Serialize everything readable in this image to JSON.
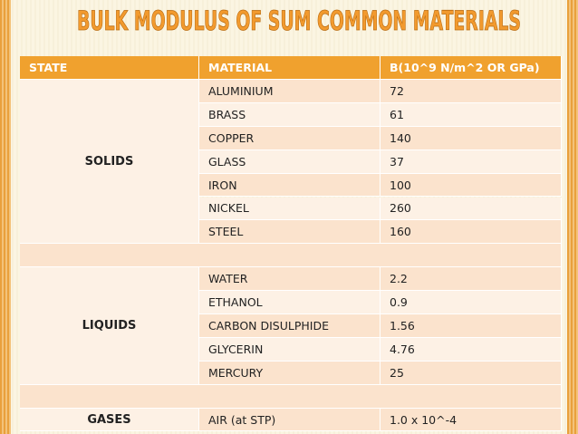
{
  "header": {
    "title": "BULK MODULUS OF SUM COMMON MATERIALS"
  },
  "table": {
    "columns": [
      "STATE",
      "MATERIAL",
      "B(10^9 N/m^2 OR GPa)"
    ],
    "groups": [
      {
        "state": "SOLIDS",
        "rows": [
          [
            "ALUMINIUM",
            "72"
          ],
          [
            "BRASS",
            "61"
          ],
          [
            "COPPER",
            "140"
          ],
          [
            "GLASS",
            "37"
          ],
          [
            "IRON",
            "100"
          ],
          [
            "NICKEL",
            "260"
          ],
          [
            "STEEL",
            "160"
          ]
        ]
      },
      {
        "state": "LIQUIDS",
        "rows": [
          [
            "WATER",
            "2.2"
          ],
          [
            "ETHANOL",
            "0.9"
          ],
          [
            "CARBON DISULPHIDE",
            "1.56"
          ],
          [
            "GLYCERIN",
            "4.76"
          ],
          [
            "MERCURY",
            "25"
          ]
        ]
      },
      {
        "state": "GASES",
        "rows": [
          [
            "AIR (at STP)",
            "1.0 x 10^-4"
          ]
        ]
      }
    ]
  }
}
